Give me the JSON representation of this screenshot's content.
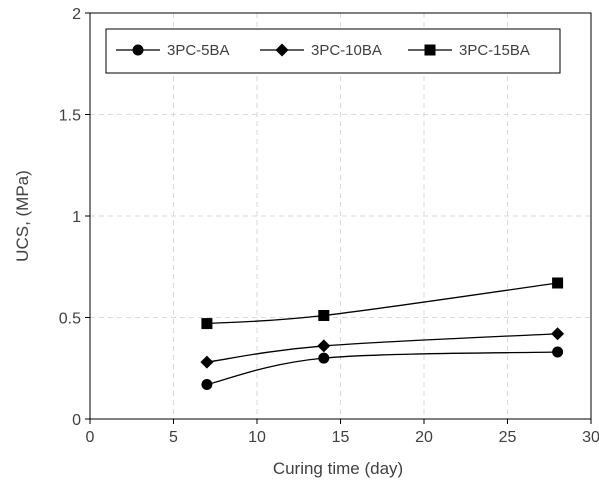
{
  "chart_data": {
    "type": "line",
    "title": "",
    "xlabel": "Curing time (day)",
    "ylabel": "UCS, (MPa)",
    "xlim": [
      0,
      30
    ],
    "ylim": [
      0,
      2
    ],
    "xticks": [
      0,
      5,
      10,
      15,
      20,
      25,
      30
    ],
    "yticks": [
      0,
      0.5,
      1,
      1.5,
      2
    ],
    "xtick_labels": [
      "0",
      "5",
      "10",
      "15",
      "20",
      "25",
      "30"
    ],
    "ytick_labels": [
      "0",
      "0.5",
      "1",
      "1.5",
      "2"
    ],
    "grid": "dashed",
    "legend_position": "top",
    "series": [
      {
        "name": "3PC-5BA",
        "marker": "circle",
        "x": [
          7,
          14,
          28
        ],
        "y": [
          0.17,
          0.3,
          0.33
        ]
      },
      {
        "name": "3PC-10BA",
        "marker": "diamond",
        "x": [
          7,
          14,
          28
        ],
        "y": [
          0.28,
          0.36,
          0.42
        ]
      },
      {
        "name": "3PC-15BA",
        "marker": "square",
        "x": [
          7,
          14,
          28
        ],
        "y": [
          0.47,
          0.51,
          0.67
        ]
      }
    ],
    "line_color": "#000000"
  }
}
